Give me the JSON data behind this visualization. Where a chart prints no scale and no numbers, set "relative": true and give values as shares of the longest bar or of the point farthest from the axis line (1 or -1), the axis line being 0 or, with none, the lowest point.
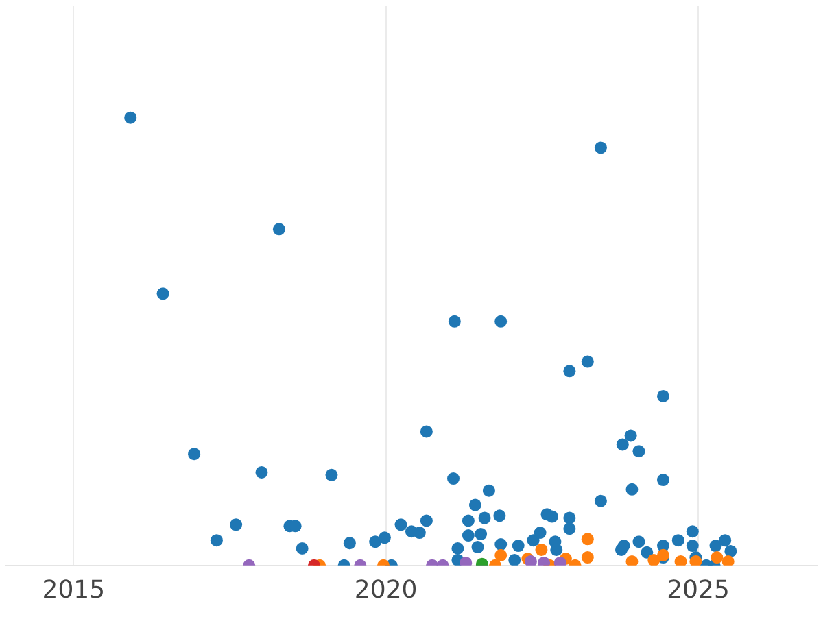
{
  "chart_data": {
    "type": "scatter",
    "relative": true,
    "xlim": [
      2013.92,
      2026.9
    ],
    "xticks": [
      2015,
      2020,
      2025
    ],
    "grid": "x",
    "marker": "circle",
    "legend": false,
    "series": [
      {
        "color": "#1f77b4",
        "x": [
          2015.91,
          2016.43,
          2016.93,
          2017.29,
          2017.6,
          2018.01,
          2018.29,
          2018.46,
          2018.55,
          2018.66,
          2019.13,
          2019.33,
          2019.42,
          2019.83,
          2019.98,
          2020.09,
          2020.24,
          2020.41,
          2020.54,
          2020.65,
          2020.65,
          2021.08,
          2021.1,
          2021.15,
          2021.15,
          2021.32,
          2021.32,
          2021.43,
          2021.47,
          2021.52,
          2021.58,
          2021.65,
          2021.82,
          2021.84,
          2021.84,
          2022.06,
          2022.12,
          2022.36,
          2022.47,
          2022.58,
          2022.66,
          2022.71,
          2022.73,
          2022.94,
          2022.94,
          2022.94,
          2023.23,
          2023.44,
          2023.44,
          2023.77,
          2023.81,
          2023.79,
          2023.92,
          2023.94,
          2024.05,
          2024.05,
          2024.18,
          2024.44,
          2024.44,
          2024.44,
          2024.44,
          2024.68,
          2024.91,
          2024.91,
          2024.96,
          2025.13,
          2025.26,
          2025.28,
          2025.43,
          2025.52
        ],
        "values": [
          1.0,
          0.607,
          0.249,
          0.056,
          0.091,
          0.208,
          0.751,
          0.088,
          0.088,
          0.038,
          0.202,
          0,
          0.05,
          0.053,
          0.062,
          0,
          0.091,
          0.076,
          0.073,
          0.1,
          0.299,
          0.194,
          0.545,
          0.038,
          0.012,
          0.067,
          0.1,
          0.135,
          0.041,
          0.07,
          0.106,
          0.167,
          0.111,
          0.545,
          0.047,
          0.012,
          0.044,
          0.056,
          0.073,
          0.114,
          0.109,
          0.053,
          0.035,
          0.434,
          0.106,
          0.082,
          0.455,
          0.933,
          0.144,
          0.035,
          0.044,
          0.27,
          0.29,
          0.17,
          0.255,
          0.053,
          0.029,
          0.378,
          0.191,
          0.044,
          0.018,
          0.056,
          0.076,
          0.044,
          0.018,
          0,
          0,
          0.044,
          0.056,
          0.032
        ]
      },
      {
        "color": "#ff7f0e",
        "x": [
          2018.94,
          2019.96,
          2021.84,
          2021.75,
          2022.27,
          2022.49,
          2022.62,
          2022.88,
          2023.03,
          2023.23,
          2023.23,
          2023.94,
          2024.29,
          2024.44,
          2024.72,
          2024.96,
          2025.3,
          2025.48
        ],
        "values": [
          0,
          0,
          0.023,
          0,
          0.015,
          0.035,
          0,
          0.015,
          0,
          0.059,
          0.018,
          0.009,
          0.012,
          0.023,
          0.009,
          0.009,
          0.018,
          0.009
        ]
      },
      {
        "color": "#9467bd",
        "x": [
          2017.81,
          2019.59,
          2020.74,
          2020.91,
          2021.28,
          2021.54,
          2022.32,
          2022.53,
          2022.79
        ],
        "values": [
          0,
          0,
          0,
          0,
          0.006,
          0,
          0.009,
          0.006,
          0.006
        ]
      },
      {
        "color": "#d62728",
        "x": [
          2018.85
        ],
        "values": [
          0
        ]
      },
      {
        "color": "#2ca02c",
        "x": [
          2021.54
        ],
        "values": [
          0.003
        ]
      }
    ]
  }
}
